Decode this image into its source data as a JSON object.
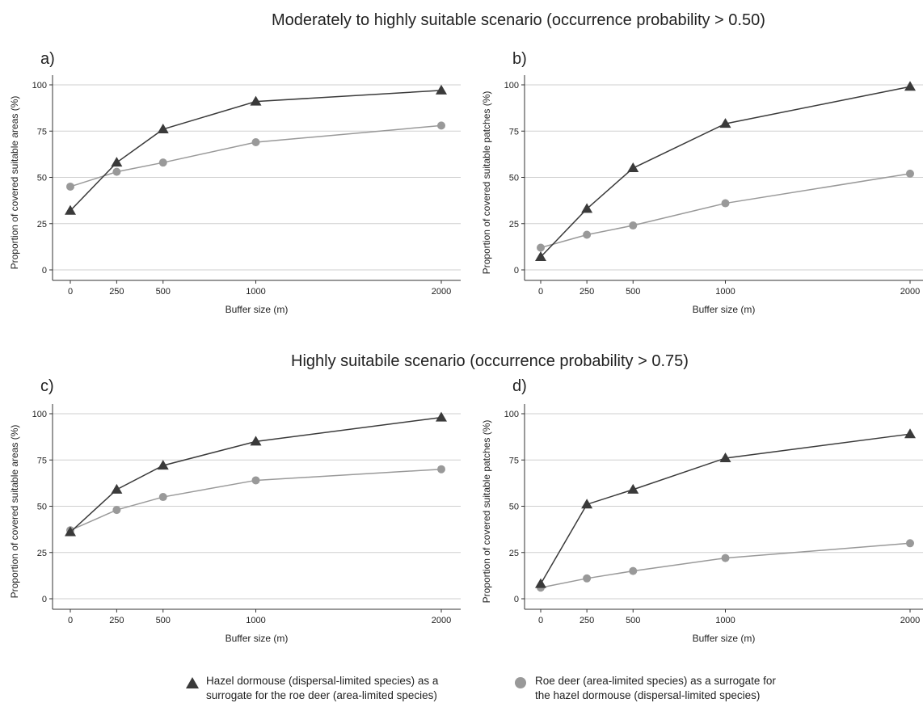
{
  "scenario_titles": {
    "top": "Moderately to highly suitable scenario (occurrence probability > 0.50)",
    "bottom": "Highly suitabile scenario (occurrence probability > 0.75)"
  },
  "legend": {
    "hazel_line1": "Hazel dormouse (dispersal-limited species) as a",
    "hazel_line2": "surrogate for the roe deer (area-limited species)",
    "roe_line1": "Roe deer (area-limited species) as a surrogate for",
    "roe_line2": "the hazel dormouse (dispersal-limited species)"
  },
  "colors": {
    "hazel": "#3a3a3a",
    "roe": "#999999",
    "grid": "#cfcfcf",
    "axis": "#333333"
  },
  "chart_data": [
    {
      "panel": "a)",
      "type": "line",
      "xlabel": "Buffer size (m)",
      "ylabel": "Proportion of covered suitable areas (%)",
      "x": [
        0,
        250,
        500,
        1000,
        2000
      ],
      "xticks": [
        "0",
        "250",
        "500",
        "1000",
        "2000"
      ],
      "yticks": [
        "0",
        "25",
        "50",
        "75",
        "100"
      ],
      "xlim": [
        0,
        2000
      ],
      "ylim": [
        0,
        100
      ],
      "grid": "horizontal",
      "series": [
        {
          "key": "hazel",
          "marker": "triangle",
          "values": [
            32,
            58,
            76,
            91,
            97
          ]
        },
        {
          "key": "roe",
          "marker": "circle",
          "values": [
            45,
            53,
            58,
            69,
            78
          ]
        }
      ]
    },
    {
      "panel": "b)",
      "type": "line",
      "xlabel": "Buffer size (m)",
      "ylabel": "Proportion of covered suitable patches (%)",
      "x": [
        0,
        250,
        500,
        1000,
        2000
      ],
      "xticks": [
        "0",
        "250",
        "500",
        "1000",
        "2000"
      ],
      "yticks": [
        "0",
        "25",
        "50",
        "75",
        "100"
      ],
      "xlim": [
        0,
        2000
      ],
      "ylim": [
        0,
        100
      ],
      "grid": "horizontal",
      "series": [
        {
          "key": "hazel",
          "marker": "triangle",
          "values": [
            7,
            33,
            55,
            79,
            99
          ]
        },
        {
          "key": "roe",
          "marker": "circle",
          "values": [
            12,
            19,
            24,
            36,
            52
          ]
        }
      ]
    },
    {
      "panel": "c)",
      "type": "line",
      "xlabel": "Buffer size (m)",
      "ylabel": "Proportion of covered suitable areas (%)",
      "x": [
        0,
        250,
        500,
        1000,
        2000
      ],
      "xticks": [
        "0",
        "250",
        "500",
        "1000",
        "2000"
      ],
      "yticks": [
        "0",
        "25",
        "50",
        "75",
        "100"
      ],
      "xlim": [
        0,
        2000
      ],
      "ylim": [
        0,
        100
      ],
      "grid": "horizontal",
      "series": [
        {
          "key": "hazel",
          "marker": "triangle",
          "values": [
            36,
            59,
            72,
            85,
            98
          ]
        },
        {
          "key": "roe",
          "marker": "circle",
          "values": [
            37,
            48,
            55,
            64,
            70
          ]
        }
      ]
    },
    {
      "panel": "d)",
      "type": "line",
      "xlabel": "Buffer size (m)",
      "ylabel": "Proportion of covered suitable patches (%)",
      "x": [
        0,
        250,
        500,
        1000,
        2000
      ],
      "xticks": [
        "0",
        "250",
        "500",
        "1000",
        "2000"
      ],
      "yticks": [
        "0",
        "25",
        "50",
        "75",
        "100"
      ],
      "xlim": [
        0,
        2000
      ],
      "ylim": [
        0,
        100
      ],
      "grid": "horizontal",
      "series": [
        {
          "key": "hazel",
          "marker": "triangle",
          "values": [
            8,
            51,
            59,
            76,
            89
          ]
        },
        {
          "key": "roe",
          "marker": "circle",
          "values": [
            6,
            11,
            15,
            22,
            30
          ]
        }
      ]
    }
  ]
}
